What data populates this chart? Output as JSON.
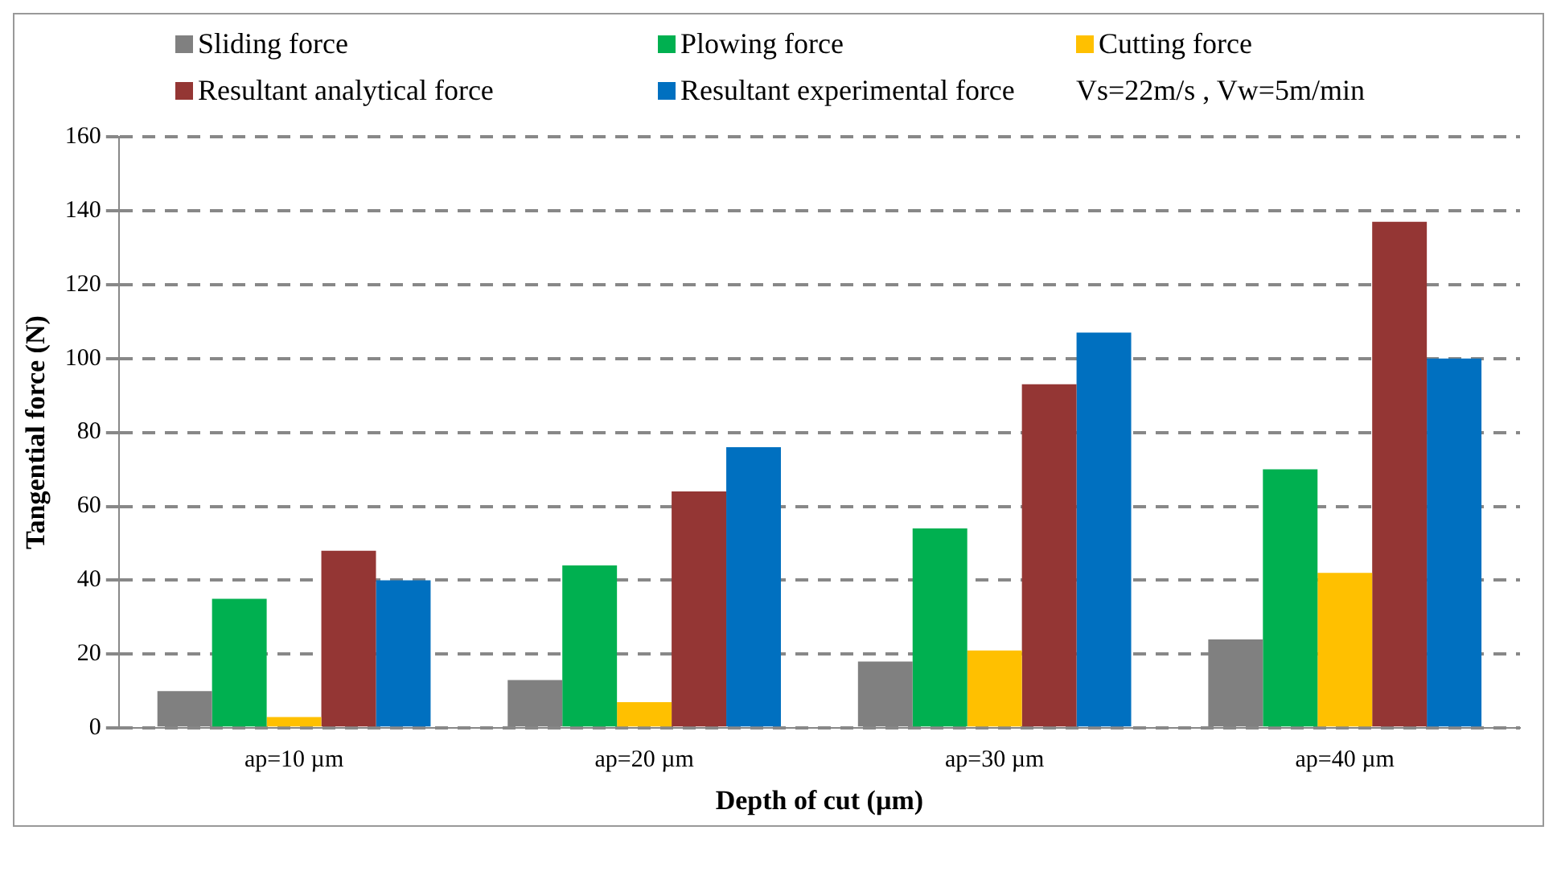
{
  "chart_data": {
    "type": "bar",
    "xlabel": "Depth of cut (µm)",
    "ylabel": "Tangential force (N)",
    "categories": [
      "ap=10 µm",
      "ap=20 µm",
      "ap=30 µm",
      "ap=40 µm"
    ],
    "series": [
      {
        "name": "Sliding force",
        "color": "#808080",
        "values": [
          10,
          13,
          18,
          24
        ]
      },
      {
        "name": "Plowing force",
        "color": "#00b050",
        "values": [
          35,
          44,
          54,
          70
        ]
      },
      {
        "name": "Cutting force",
        "color": "#ffc000",
        "values": [
          3,
          7,
          21,
          42
        ]
      },
      {
        "name": "Resultant analytical force",
        "color": "#943634",
        "values": [
          48,
          64,
          93,
          137
        ]
      },
      {
        "name": "Resultant experimental force",
        "color": "#0070c0",
        "values": [
          40,
          76,
          107,
          100
        ]
      }
    ],
    "ylim": [
      0,
      160
    ],
    "yticks": [
      0,
      20,
      40,
      60,
      80,
      100,
      120,
      140,
      160
    ],
    "grid": "y",
    "legend": "top",
    "annotations": [
      "Vs=22m/s , Vw=5m/min"
    ]
  }
}
